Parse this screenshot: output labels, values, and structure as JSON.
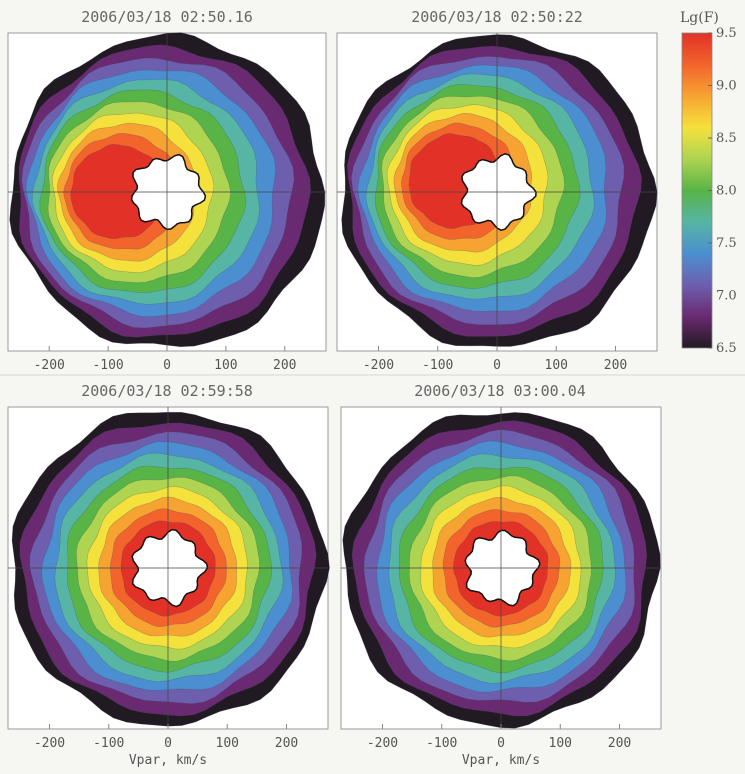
{
  "chart_data": {
    "type": "heatmap",
    "description_visible": "Four polar velocity distribution plots with shared colorbar",
    "panels": [
      {
        "title": "2006/03/18 02:50.16",
        "xticks": [
          "-200",
          "-100",
          "0",
          "100",
          "200"
        ],
        "xlabel": "",
        "peak_offset": [
          -0.45,
          0.0
        ],
        "peak_shape": "crescent"
      },
      {
        "title": "2006/03/18 02:50:22",
        "xticks": [
          "-200",
          "-100",
          "0",
          "100",
          "200"
        ],
        "xlabel": "",
        "peak_offset": [
          -0.38,
          -0.1
        ],
        "peak_shape": "crescent"
      },
      {
        "title": "2006/03/18 02:59:58",
        "xticks": [
          "-200",
          "-100",
          "0",
          "100",
          "200"
        ],
        "xlabel": "Vpar, km/s",
        "peak_offset": [
          0.0,
          0.0
        ],
        "peak_shape": "ring"
      },
      {
        "title": "2006/03/18 03:00.04",
        "xticks": [
          "-200",
          "-100",
          "0",
          "100",
          "200"
        ],
        "xlabel": "Vpar, km/s",
        "peak_offset": [
          0.0,
          0.0
        ],
        "peak_shape": "ring"
      }
    ],
    "xlim": [
      -270,
      270
    ],
    "ylim": [
      -270,
      270
    ],
    "colorbar": {
      "title": "Lg(F)",
      "min": 6.5,
      "max": 9.5,
      "ticks": [
        "9.5",
        "9.0",
        "8.5",
        "8.0",
        "7.5",
        "7.0",
        "6.5"
      ],
      "colors": [
        "#e23127",
        "#f2642c",
        "#f7a331",
        "#f5e13c",
        "#aed451",
        "#58b447",
        "#56b5a4",
        "#4b8fd0",
        "#6d5fae",
        "#6a2a71",
        "#221a22"
      ]
    }
  }
}
